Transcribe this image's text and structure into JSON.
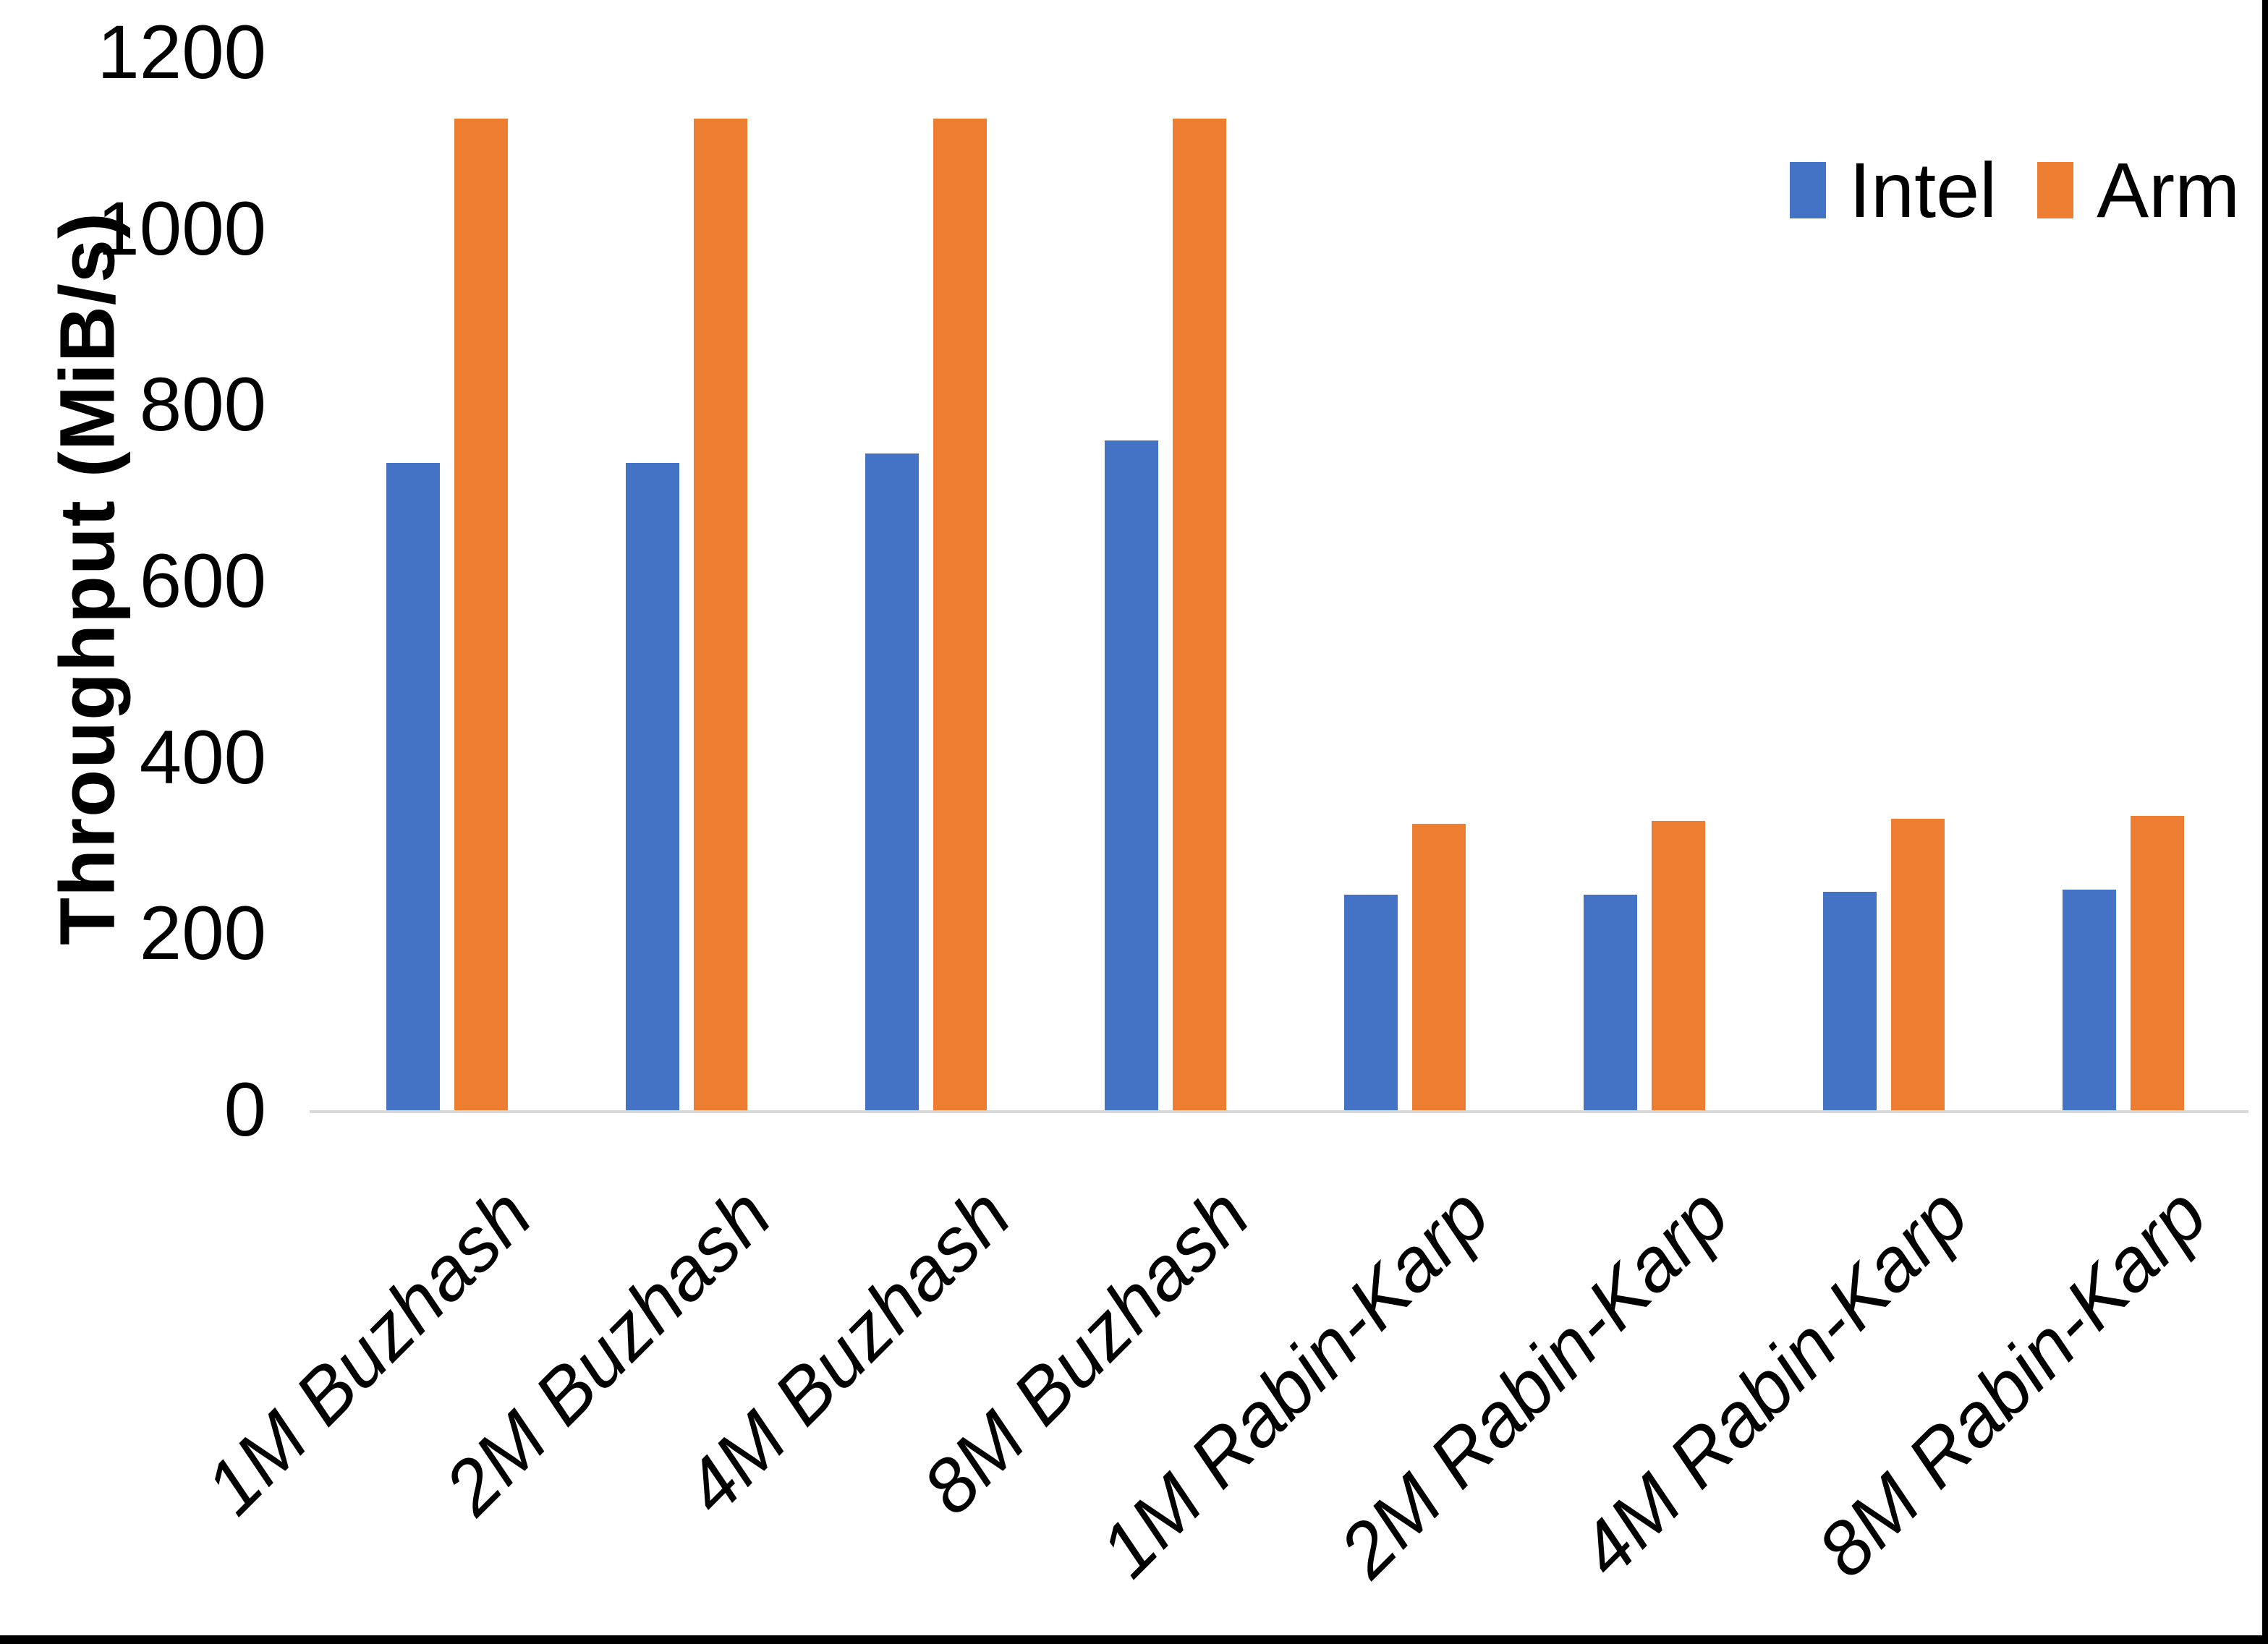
{
  "chart_data": {
    "type": "bar",
    "title": "",
    "xlabel": "",
    "ylabel": "Throughput (MiB/s)",
    "categories": [
      "1M Buzhash",
      "2M Buzhash",
      "4M Buzhash",
      "8M Buzhash",
      "1M Rabin-Karp",
      "2M Rabin-Karp",
      "4M Rabin-Karp",
      "8M Rabin-Karp"
    ],
    "series": [
      {
        "name": "Intel",
        "color": "#4472C4",
        "values": [
          735,
          735,
          745,
          760,
          245,
          245,
          248,
          250
        ]
      },
      {
        "name": "Arm",
        "color": "#ED7D31",
        "values": [
          1125,
          1125,
          1125,
          1125,
          325,
          328,
          331,
          334
        ]
      }
    ],
    "ylim": [
      0,
      1200
    ],
    "ytick_step": 200,
    "ytick_labels": [
      "0",
      "200",
      "400",
      "600",
      "800",
      "1000",
      "1200"
    ],
    "grid": false,
    "legend_position": "top-right",
    "axis_line_color": "#D9D9D9",
    "text_color": "#000000",
    "background_color": "#FFFFFF"
  },
  "frame": {
    "right_border_color": "#000000",
    "bottom_border_color": "#000000"
  }
}
